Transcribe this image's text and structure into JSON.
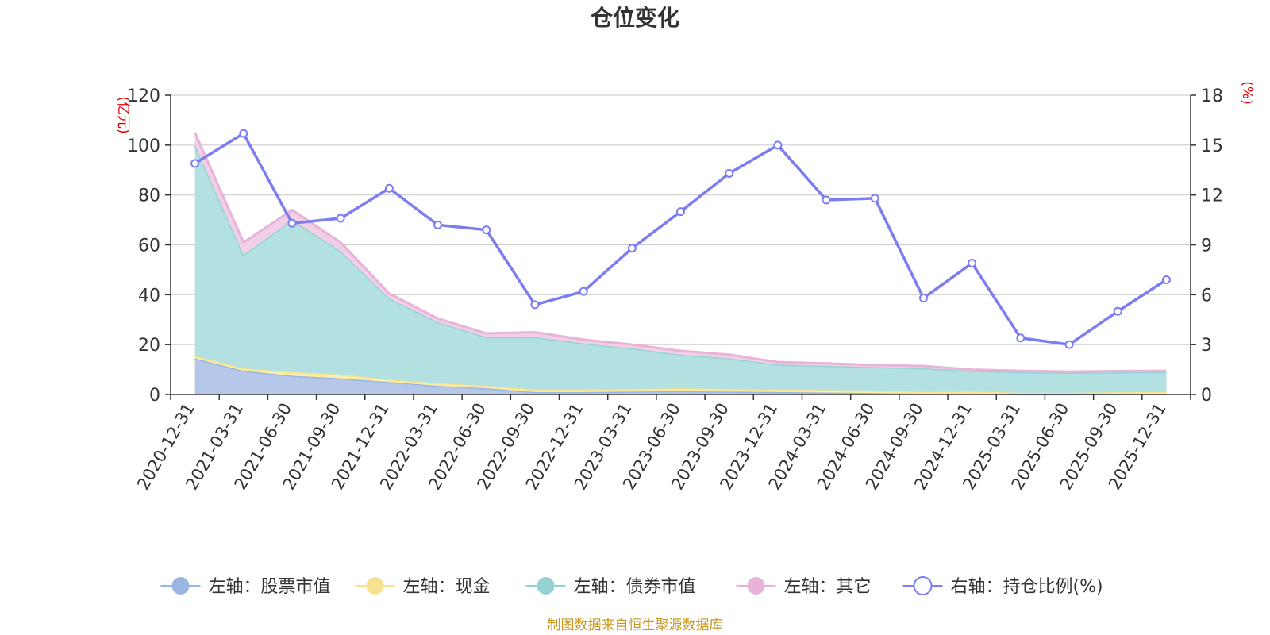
{
  "chart_data": {
    "type": "area",
    "title": "仓位变化",
    "left_axis_unit": "(亿元)",
    "right_axis_unit": "(%)",
    "left_ylim": [
      0,
      120
    ],
    "left_ticks": [
      0,
      20,
      40,
      60,
      80,
      100,
      120
    ],
    "right_ylim": [
      0,
      18
    ],
    "right_ticks": [
      0,
      3,
      6,
      9,
      12,
      15,
      18
    ],
    "categories": [
      "2020-12-31",
      "2021-03-31",
      "2021-06-30",
      "2021-09-30",
      "2021-12-31",
      "2022-03-31",
      "2022-06-30",
      "2022-09-30",
      "2022-12-31",
      "2023-03-31",
      "2023-06-30",
      "2023-09-30",
      "2023-12-31",
      "2024-03-31",
      "2024-06-30",
      "2024-09-30",
      "2024-12-31",
      "2025-03-31",
      "2025-06-30",
      "2025-09-30",
      "2025-12-31"
    ],
    "series": [
      {
        "name": "左轴：股票市值",
        "axis": "left",
        "stacked": true,
        "fill": "#b5c8ea",
        "line": "#9ab5e3",
        "values": [
          14.5,
          9.5,
          7.5,
          6.5,
          5.0,
          3.5,
          2.5,
          1.0,
          1.0,
          1.2,
          1.3,
          1.2,
          1.0,
          0.8,
          0.6,
          0.3,
          0.4,
          0.1,
          0.1,
          0.2,
          0.3
        ]
      },
      {
        "name": "左轴：现金",
        "axis": "left",
        "stacked": true,
        "fill": "#fbeea8",
        "line": "#f7e38f",
        "values": [
          1.0,
          1.0,
          1.5,
          1.5,
          1.0,
          1.0,
          1.0,
          1.0,
          1.0,
          1.0,
          1.2,
          1.0,
          1.0,
          1.0,
          1.0,
          0.7,
          0.8,
          0.6,
          0.6,
          0.7,
          0.7
        ]
      },
      {
        "name": "左轴：债券市值",
        "axis": "left",
        "stacked": true,
        "fill": "#b3e1e1",
        "line": "#96d2d4",
        "values": [
          84.5,
          45.5,
          61.0,
          49.5,
          32.5,
          24.5,
          19.5,
          21.0,
          18.5,
          16.3,
          13.5,
          12.3,
          10.0,
          9.7,
          9.4,
          9.5,
          8.3,
          8.3,
          8.0,
          8.0,
          8.0
        ]
      },
      {
        "name": "左轴：其它",
        "axis": "left",
        "stacked": true,
        "fill": "#f1cfe6",
        "line": "#e8b3d9",
        "values": [
          5.0,
          5.0,
          4.0,
          3.5,
          2.0,
          1.5,
          1.5,
          2.0,
          1.5,
          1.5,
          1.5,
          1.5,
          1.0,
          1.0,
          0.8,
          0.9,
          0.5,
          0.5,
          0.5,
          0.5,
          0.5
        ]
      },
      {
        "name": "右轴：持仓比例(%)",
        "axis": "right",
        "stacked": false,
        "line": "#7b7df0",
        "values": [
          13.9,
          15.7,
          10.3,
          10.6,
          12.4,
          10.2,
          9.9,
          5.4,
          6.2,
          8.8,
          11.0,
          13.3,
          15.0,
          11.7,
          11.8,
          5.8,
          7.9,
          3.4,
          3.0,
          5.0,
          6.9
        ]
      }
    ],
    "legend_position": "bottom-center"
  },
  "footer": {
    "text": "制图数据来自恒生聚源数据库"
  }
}
